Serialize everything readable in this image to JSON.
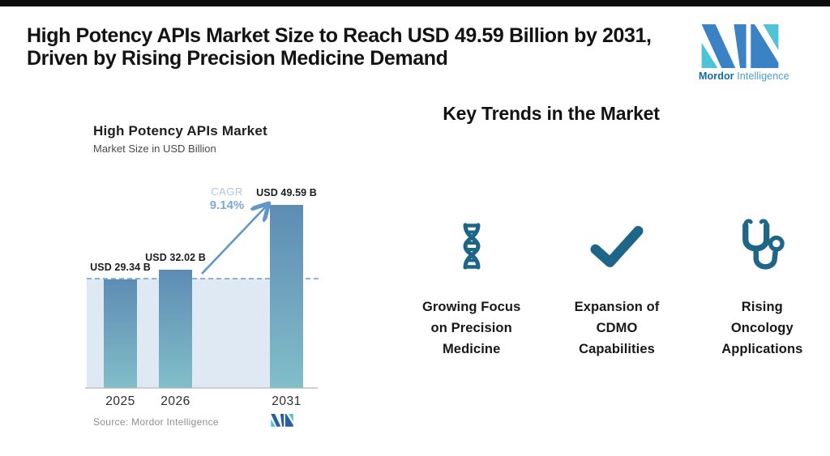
{
  "header": {
    "title": "High Potency APIs Market Size to Reach USD 49.59 Billion by 2031,\nDriven by Rising Precision Medicine Demand",
    "brand_bold": "Mordor",
    "brand_light": "Intelligence"
  },
  "chart": {
    "title": "High Potency APIs Market",
    "subtitle": "Market Size in USD Billion",
    "cagr_label": "CAGR",
    "cagr_value": "9.14%",
    "source": "Source: Mordor Intelligence"
  },
  "chart_data": {
    "type": "bar",
    "title": "High Potency APIs Market",
    "subtitle": "Market Size in USD Billion",
    "categories": [
      "2025",
      "2026",
      "2031"
    ],
    "values": [
      29.34,
      32.02,
      49.59
    ],
    "bar_labels": [
      "USD 29.34 B",
      "USD 32.02 B",
      "USD 49.59 B"
    ],
    "unit": "USD Billion",
    "cagr": "9.14%",
    "ylim": [
      0,
      52
    ],
    "baseline_dashed_at": 29.34,
    "legend": "none",
    "grid": "off",
    "annotations": [
      "CAGR 9.14% growth arrow from 2026 to 2031",
      "dashed reference line at 2025 level with light shaded area below"
    ]
  },
  "trends": {
    "heading": "Key Trends in the Market",
    "items": [
      {
        "icon": "dna-icon",
        "label": "Growing Focus\non Precision\nMedicine"
      },
      {
        "icon": "check-icon",
        "label": "Expansion of\nCDMO\nCapabilities"
      },
      {
        "icon": "stethoscope-icon",
        "label": "Rising\nOncology\nApplications"
      }
    ]
  },
  "colors": {
    "topbar": "#0e0e0e",
    "icon_teal": "#1e6688",
    "bar_gradient_top": "#5d8cb3",
    "bar_gradient_bottom": "#82bec9",
    "area_fill": "#dfe9f3",
    "dashed_line": "#8fb2d2",
    "arrow_blue": "#6096c8",
    "cagr_label_blue": "#a9c8e3",
    "cagr_value_blue": "#7ea9d2",
    "brand_blue": "#3b82c4",
    "brand_teal": "#4fc4d6",
    "source_gray": "#8f8f8f"
  }
}
